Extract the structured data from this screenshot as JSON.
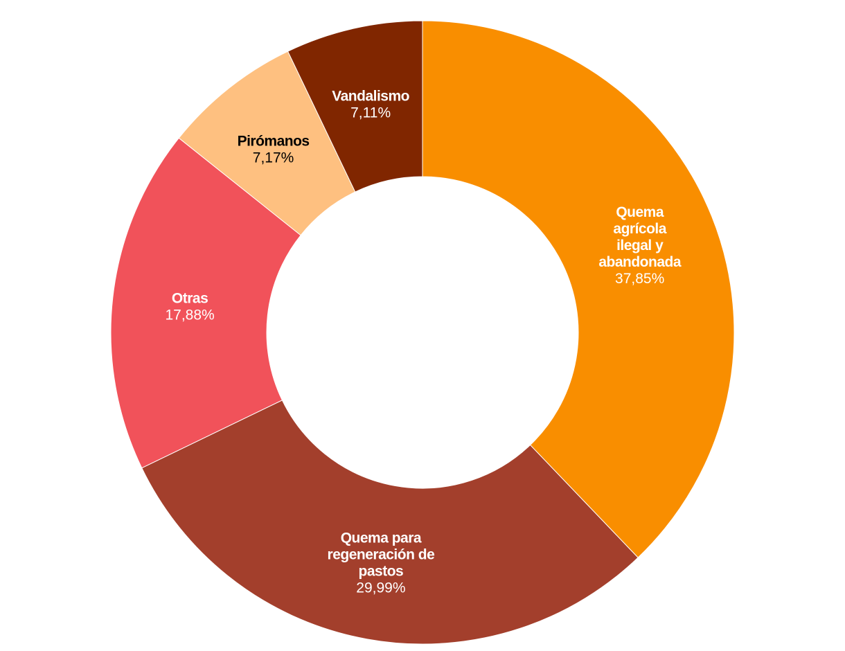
{
  "chart_data": {
    "type": "pie",
    "donut": true,
    "title": "",
    "legend": "none",
    "slices": [
      {
        "label": "Quema agrícola ilegal y abandonada",
        "label_lines": [
          "Quema",
          "agrícola",
          "ilegal y",
          "abandonada"
        ],
        "value": 37.85,
        "value_text": "37,85%",
        "color": "#f98e00",
        "text_color": "#ffffff"
      },
      {
        "label": "Quema para regeneración de pastos",
        "label_lines": [
          "Quema para",
          "regeneración de",
          "pastos"
        ],
        "value": 29.99,
        "value_text": "29,99%",
        "color": "#a33f2c",
        "text_color": "#ffffff"
      },
      {
        "label": "Otras",
        "label_lines": [
          "Otras"
        ],
        "value": 17.88,
        "value_text": "17,88%",
        "color": "#f1525a",
        "text_color": "#ffffff"
      },
      {
        "label": "Pirómanos",
        "label_lines": [
          "Pirómanos"
        ],
        "value": 7.17,
        "value_text": "7,17%",
        "color": "#fec080",
        "text_color": "#000000"
      },
      {
        "label": "Vandalismo",
        "label_lines": [
          "Vandalismo"
        ],
        "value": 7.11,
        "value_text": "7,11%",
        "color": "#802600",
        "text_color": "#ffffff"
      }
    ]
  }
}
